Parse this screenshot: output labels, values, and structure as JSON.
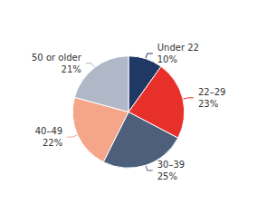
{
  "chart_data": {
    "type": "pie",
    "categories": [
      "Under 22",
      "22–29",
      "30–39",
      "40–49",
      "50 or older"
    ],
    "values": [
      10,
      23,
      25,
      22,
      21
    ],
    "value_labels": [
      "10%",
      "23%",
      "25%",
      "22%",
      "21%"
    ],
    "colors": [
      "#1f3864",
      "#e8302a",
      "#4d5f7a",
      "#f4a58a",
      "#b0b8c8"
    ],
    "data_labels": true
  }
}
